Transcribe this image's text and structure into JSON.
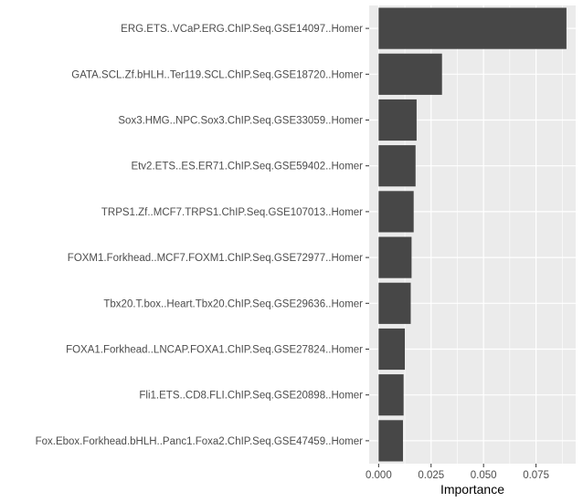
{
  "chart_data": {
    "type": "bar",
    "orientation": "horizontal",
    "title": "",
    "xlabel": "Importance",
    "ylabel": "",
    "categories": [
      "ERG.ETS..VCaP.ERG.ChIP.Seq.GSE14097..Homer",
      "GATA.SCL.Zf.bHLH..Ter119.SCL.ChIP.Seq.GSE18720..Homer",
      "Sox3.HMG..NPC.Sox3.ChIP.Seq.GSE33059..Homer",
      "Etv2.ETS..ES.ER71.ChIP.Seq.GSE59402..Homer",
      "TRPS1.Zf..MCF7.TRPS1.ChIP.Seq.GSE107013..Homer",
      "FOXM1.Forkhead..MCF7.FOXM1.ChIP.Seq.GSE72977..Homer",
      "Tbx20.T.box..Heart.Tbx20.ChIP.Seq.GSE29636..Homer",
      "FOXA1.Forkhead..LNCAP.FOXA1.ChIP.Seq.GSE27824..Homer",
      "Fli1.ETS..CD8.FLI.ChIP.Seq.GSE20898..Homer",
      "Fox.Ebox.Forkhead.bHLH..Panc1.Foxa2.ChIP.Seq.GSE47459..Homer"
    ],
    "values": [
      0.0895,
      0.0302,
      0.0181,
      0.0176,
      0.0167,
      0.0157,
      0.0153,
      0.0125,
      0.0119,
      0.0116
    ],
    "xlim": [
      -0.0045,
      0.0939
    ],
    "xticks": [
      0.0,
      0.025,
      0.05,
      0.075
    ],
    "xtick_labels": [
      "0.000",
      "0.025",
      "0.050",
      "0.075"
    ],
    "grid": true,
    "legend": "none",
    "colors": {
      "bar": "#474747",
      "panel": "#ebebeb",
      "grid": "#ffffff",
      "tick_text": "#4d4d4d",
      "title_text": "#000000"
    }
  }
}
